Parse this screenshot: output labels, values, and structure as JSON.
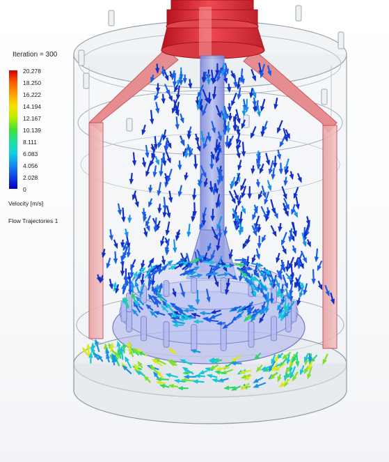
{
  "legend": {
    "iteration_label": "Iteration = 300",
    "scale_values": [
      "20.278",
      "18.250",
      "16.222",
      "14.194",
      "12.167",
      "10.139",
      "8.111",
      "6.083",
      "4.056",
      "2.028",
      "0"
    ],
    "quantity_label": "Velocity [m/s]",
    "plot_label": "Flow Trajectories 1"
  },
  "colors": {
    "tank_red": "#d8323c",
    "tank_glass": "#cfd6de",
    "arrow_low": "#1a3fd8",
    "arrow_mid": "#1aa8e0",
    "arrow_high": "#8ee020"
  },
  "scene": {
    "object": "mixing-tank",
    "arrow_color_scale": "velocity"
  }
}
